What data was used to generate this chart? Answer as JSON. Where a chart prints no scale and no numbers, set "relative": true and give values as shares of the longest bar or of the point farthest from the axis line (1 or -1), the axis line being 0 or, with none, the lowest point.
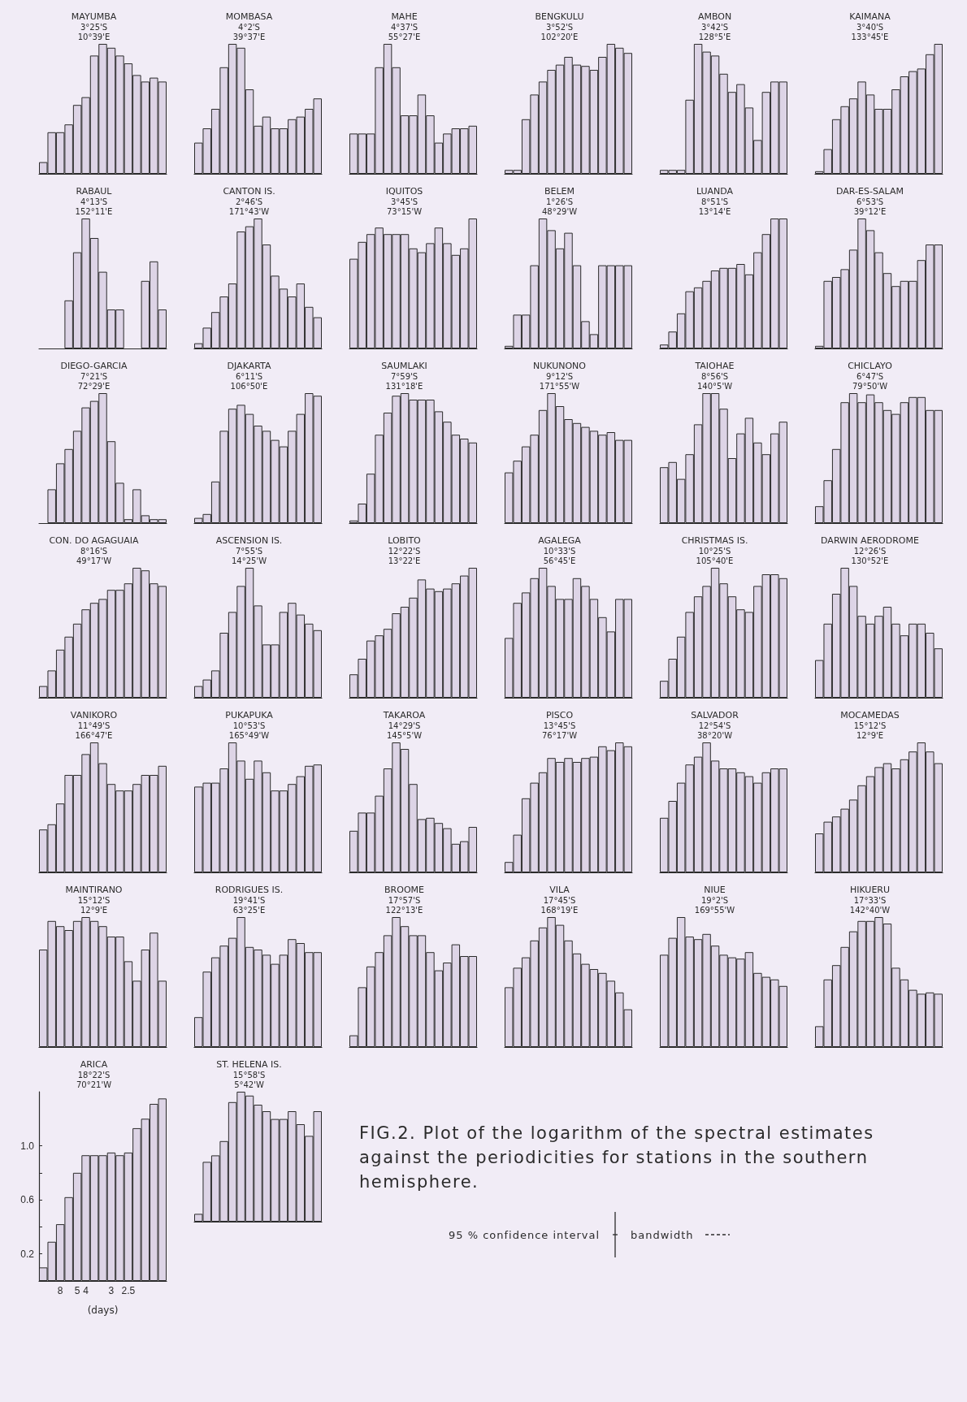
{
  "chart_data": [
    {
      "type": "bar",
      "relative": true,
      "title": "MAYUMBA",
      "subtitle": "3°25'S\n10°39'E",
      "categories": [
        null,
        null,
        null,
        null,
        null,
        null,
        null,
        null,
        null,
        null,
        null,
        null,
        null,
        null,
        null
      ],
      "values": [
        0.09,
        0.32,
        0.32,
        0.38,
        0.53,
        0.59,
        0.91,
        1,
        0.97,
        0.91,
        0.85,
        0.76,
        0.71,
        0.74,
        0.71
      ],
      "color": "#ddd4e6"
    },
    {
      "type": "bar",
      "relative": true,
      "title": "MOMBASA",
      "subtitle": "4°2'S\n39°37'E",
      "categories": [
        null,
        null,
        null,
        null,
        null,
        null,
        null,
        null,
        null,
        null,
        null,
        null,
        null,
        null,
        null
      ],
      "values": [
        0.24,
        0.35,
        0.5,
        0.82,
        1,
        0.97,
        0.65,
        0.37,
        0.44,
        0.35,
        0.35,
        0.42,
        0.44,
        0.5,
        0.58
      ],
      "color": "#ddd4e6"
    },
    {
      "type": "bar",
      "relative": true,
      "title": "MAHE",
      "subtitle": "4°37'S\n55°27'E",
      "categories": [
        null,
        null,
        null,
        null,
        null,
        null,
        null,
        null,
        null,
        null,
        null,
        null,
        null,
        null,
        null
      ],
      "values": [
        0.31,
        0.31,
        0.31,
        0.82,
        1,
        0.82,
        0.45,
        0.45,
        0.61,
        0.45,
        0.24,
        0.31,
        0.35,
        0.35,
        0.37
      ],
      "color": "#ddd4e6"
    },
    {
      "type": "bar",
      "relative": true,
      "title": "BENGKULU",
      "subtitle": "3°52'S\n102°20'E",
      "categories": [
        null,
        null,
        null,
        null,
        null,
        null,
        null,
        null,
        null,
        null,
        null,
        null,
        null,
        null,
        null
      ],
      "values": [
        0.03,
        0.03,
        0.42,
        0.61,
        0.71,
        0.8,
        0.84,
        0.9,
        0.84,
        0.83,
        0.8,
        0.9,
        1,
        0.97,
        0.93
      ],
      "color": "#ddd4e6"
    },
    {
      "type": "bar",
      "relative": true,
      "title": "AMBON",
      "subtitle": "3°42'S\n128°5'E",
      "categories": [
        null,
        null,
        null,
        null,
        null,
        null,
        null,
        null,
        null,
        null,
        null,
        null,
        null,
        null,
        null
      ],
      "values": [
        0.03,
        0.03,
        0.03,
        0.57,
        1,
        0.94,
        0.91,
        0.77,
        0.63,
        0.69,
        0.51,
        0.26,
        0.63,
        0.71,
        0.71
      ],
      "color": "#ddd4e6"
    },
    {
      "type": "bar",
      "relative": true,
      "title": "KAIMANA",
      "subtitle": "3°40'S\n133°45'E",
      "categories": [
        null,
        null,
        null,
        null,
        null,
        null,
        null,
        null,
        null,
        null,
        null,
        null,
        null,
        null,
        null
      ],
      "values": [
        0.02,
        0.19,
        0.42,
        0.52,
        0.58,
        0.71,
        0.61,
        0.5,
        0.5,
        0.65,
        0.75,
        0.79,
        0.81,
        0.92,
        1
      ],
      "color": "#ddd4e6"
    },
    {
      "type": "bar",
      "relative": true,
      "title": "RABAUL",
      "subtitle": "4°13'S\n152°11'E",
      "categories": [
        null,
        null,
        null,
        null,
        null,
        null,
        null,
        null,
        null,
        null,
        null,
        null,
        null,
        null,
        null
      ],
      "values": [
        0,
        0,
        0,
        0.37,
        0.74,
        1,
        0.85,
        0.59,
        0.3,
        0.3,
        0,
        0,
        0.52,
        0.67,
        0.3
      ],
      "color": "#ddd4e6"
    },
    {
      "type": "bar",
      "relative": true,
      "title": "CANTON IS.",
      "subtitle": "2°46'S\n171°43'W",
      "categories": [
        null,
        null,
        null,
        null,
        null,
        null,
        null,
        null,
        null,
        null,
        null,
        null,
        null,
        null,
        null
      ],
      "values": [
        0.04,
        0.16,
        0.28,
        0.4,
        0.5,
        0.9,
        0.94,
        1,
        0.8,
        0.56,
        0.46,
        0.4,
        0.5,
        0.32,
        0.24
      ],
      "color": "#ddd4e6"
    },
    {
      "type": "bar",
      "relative": true,
      "title": "IQUITOS",
      "subtitle": "3°45'S\n73°15'W",
      "categories": [
        null,
        null,
        null,
        null,
        null,
        null,
        null,
        null,
        null,
        null,
        null,
        null,
        null,
        null,
        null
      ],
      "values": [
        0.69,
        0.82,
        0.88,
        0.93,
        0.88,
        0.88,
        0.88,
        0.77,
        0.74,
        0.81,
        0.93,
        0.81,
        0.72,
        0.77,
        1
      ],
      "color": "#ddd4e6"
    },
    {
      "type": "bar",
      "relative": true,
      "title": "BELEM",
      "subtitle": "1°26'S\n48°29'W",
      "categories": [
        null,
        null,
        null,
        null,
        null,
        null,
        null,
        null,
        null,
        null,
        null,
        null,
        null,
        null,
        null
      ],
      "values": [
        0.02,
        0.26,
        0.26,
        0.64,
        1,
        0.91,
        0.77,
        0.89,
        0.64,
        0.21,
        0.11,
        0.64,
        0.64,
        0.64,
        0.64
      ],
      "color": "#ddd4e6"
    },
    {
      "type": "bar",
      "relative": true,
      "title": "LUANDA",
      "subtitle": "8°51'S\n13°14'E",
      "categories": [
        null,
        null,
        null,
        null,
        null,
        null,
        null,
        null,
        null,
        null,
        null,
        null,
        null,
        null,
        null
      ],
      "values": [
        0.03,
        0.13,
        0.27,
        0.44,
        0.47,
        0.52,
        0.6,
        0.62,
        0.62,
        0.65,
        0.57,
        0.74,
        0.88,
        1,
        1
      ],
      "color": "#ddd4e6"
    },
    {
      "type": "bar",
      "relative": true,
      "title": "DAR-ES-SALAM",
      "subtitle": "6°53'S\n39°12'E",
      "categories": [
        null,
        null,
        null,
        null,
        null,
        null,
        null,
        null,
        null,
        null,
        null,
        null,
        null,
        null,
        null
      ],
      "values": [
        0.02,
        0.52,
        0.55,
        0.61,
        0.76,
        1,
        0.91,
        0.74,
        0.58,
        0.48,
        0.52,
        0.52,
        0.68,
        0.8,
        0.8
      ],
      "color": "#ddd4e6"
    },
    {
      "type": "bar",
      "relative": true,
      "title": "DIEGO-GARCIA",
      "subtitle": "7°21'S\n72°29'E",
      "categories": [
        null,
        null,
        null,
        null,
        null,
        null,
        null,
        null,
        null,
        null,
        null,
        null,
        null,
        null,
        null
      ],
      "values": [
        0,
        0.26,
        0.46,
        0.57,
        0.71,
        0.89,
        0.94,
        1,
        0.63,
        0.31,
        0.03,
        0.26,
        0.06,
        0.03,
        0.03
      ],
      "color": "#ddd4e6"
    },
    {
      "type": "bar",
      "relative": true,
      "title": "DJAKARTA",
      "subtitle": "6°11'S\n106°50'E",
      "categories": [
        null,
        null,
        null,
        null,
        null,
        null,
        null,
        null,
        null,
        null,
        null,
        null,
        null,
        null,
        null
      ],
      "values": [
        0.04,
        0.07,
        0.32,
        0.71,
        0.88,
        0.91,
        0.84,
        0.75,
        0.71,
        0.64,
        0.59,
        0.71,
        0.84,
        1,
        0.98
      ],
      "color": "#ddd4e6"
    },
    {
      "type": "bar",
      "relative": true,
      "title": "SAUMLAKI",
      "subtitle": "7°59'S\n131°18'E",
      "categories": [
        null,
        null,
        null,
        null,
        null,
        null,
        null,
        null,
        null,
        null,
        null,
        null,
        null,
        null,
        null
      ],
      "values": [
        0.02,
        0.15,
        0.38,
        0.68,
        0.85,
        0.98,
        1,
        0.95,
        0.95,
        0.95,
        0.86,
        0.78,
        0.68,
        0.65,
        0.62
      ],
      "color": "#ddd4e6"
    },
    {
      "type": "bar",
      "relative": true,
      "title": "NUKUNONO",
      "subtitle": "9°12'S\n171°55'W",
      "categories": [
        null,
        null,
        null,
        null,
        null,
        null,
        null,
        null,
        null,
        null,
        null,
        null,
        null,
        null,
        null
      ],
      "values": [
        0.39,
        0.48,
        0.59,
        0.68,
        0.87,
        1,
        0.9,
        0.8,
        0.77,
        0.74,
        0.71,
        0.68,
        0.7,
        0.64,
        0.64
      ],
      "color": "#ddd4e6"
    },
    {
      "type": "bar",
      "relative": true,
      "title": "TAIOHAE",
      "subtitle": "8°56'S\n140°5'W",
      "categories": [
        null,
        null,
        null,
        null,
        null,
        null,
        null,
        null,
        null,
        null,
        null,
        null,
        null,
        null,
        null
      ],
      "values": [
        0.43,
        0.47,
        0.34,
        0.53,
        0.76,
        1,
        1,
        0.88,
        0.5,
        0.69,
        0.81,
        0.62,
        0.53,
        0.69,
        0.78
      ],
      "color": "#ddd4e6"
    },
    {
      "type": "bar",
      "relative": true,
      "title": "CHICLAYO",
      "subtitle": "6°47'S\n79°50'W",
      "categories": [
        null,
        null,
        null,
        null,
        null,
        null,
        null,
        null,
        null,
        null,
        null,
        null,
        null,
        null,
        null
      ],
      "values": [
        0.13,
        0.33,
        0.57,
        0.93,
        1,
        0.93,
        0.99,
        0.93,
        0.87,
        0.84,
        0.93,
        0.97,
        0.97,
        0.87,
        0.87
      ],
      "color": "#ddd4e6"
    },
    {
      "type": "bar",
      "relative": true,
      "title": "CON. DO AGAGUAIA",
      "subtitle": "8°16'S\n49°17'W",
      "categories": [
        null,
        null,
        null,
        null,
        null,
        null,
        null,
        null,
        null,
        null,
        null,
        null,
        null,
        null,
        null
      ],
      "values": [
        0.09,
        0.21,
        0.37,
        0.47,
        0.57,
        0.68,
        0.73,
        0.76,
        0.83,
        0.83,
        0.88,
        1,
        0.98,
        0.88,
        0.86
      ],
      "color": "#ddd4e6"
    },
    {
      "type": "bar",
      "relative": true,
      "title": "ASCENSION IS.",
      "subtitle": "7°55'S\n14°25'W",
      "categories": [
        null,
        null,
        null,
        null,
        null,
        null,
        null,
        null,
        null,
        null,
        null,
        null,
        null,
        null,
        null
      ],
      "values": [
        0.09,
        0.14,
        0.21,
        0.5,
        0.66,
        0.86,
        1,
        0.71,
        0.41,
        0.41,
        0.66,
        0.73,
        0.64,
        0.57,
        0.52
      ],
      "color": "#ddd4e6"
    },
    {
      "type": "bar",
      "relative": true,
      "title": "LOBITO",
      "subtitle": "12°22'S\n13°22'E",
      "categories": [
        null,
        null,
        null,
        null,
        null,
        null,
        null,
        null,
        null,
        null,
        null,
        null,
        null,
        null,
        null
      ],
      "values": [
        0.18,
        0.3,
        0.44,
        0.48,
        0.53,
        0.65,
        0.7,
        0.77,
        0.91,
        0.84,
        0.82,
        0.84,
        0.88,
        0.94,
        1
      ],
      "color": "#ddd4e6"
    },
    {
      "type": "bar",
      "relative": true,
      "title": "AGALEGA",
      "subtitle": "10°33'S\n56°45'E",
      "categories": [
        null,
        null,
        null,
        null,
        null,
        null,
        null,
        null,
        null,
        null,
        null,
        null,
        null,
        null,
        null
      ],
      "values": [
        0.46,
        0.73,
        0.81,
        0.92,
        1,
        0.86,
        0.76,
        0.76,
        0.92,
        0.86,
        0.76,
        0.62,
        0.51,
        0.76,
        0.76
      ],
      "color": "#ddd4e6"
    },
    {
      "type": "bar",
      "relative": true,
      "title": "CHRISTMAS IS.",
      "subtitle": "10°25'S\n105°40'E",
      "categories": [
        null,
        null,
        null,
        null,
        null,
        null,
        null,
        null,
        null,
        null,
        null,
        null,
        null,
        null,
        null
      ],
      "values": [
        0.13,
        0.3,
        0.47,
        0.66,
        0.78,
        0.86,
        1,
        0.88,
        0.78,
        0.68,
        0.66,
        0.86,
        0.95,
        0.95,
        0.92
      ],
      "color": "#ddd4e6"
    },
    {
      "type": "bar",
      "relative": true,
      "title": "DARWIN AERODROME",
      "subtitle": "12°26'S\n130°52'E",
      "categories": [
        null,
        null,
        null,
        null,
        null,
        null,
        null,
        null,
        null,
        null,
        null,
        null,
        null,
        null,
        null
      ],
      "values": [
        0.29,
        0.57,
        0.8,
        1,
        0.86,
        0.63,
        0.57,
        0.63,
        0.7,
        0.57,
        0.48,
        0.57,
        0.57,
        0.5,
        0.38
      ],
      "color": "#ddd4e6"
    },
    {
      "type": "bar",
      "relative": true,
      "title": "VANIKORO",
      "subtitle": "11°49'S\n166°47'E",
      "categories": [
        null,
        null,
        null,
        null,
        null,
        null,
        null,
        null,
        null,
        null,
        null,
        null,
        null,
        null,
        null
      ],
      "values": [
        0.33,
        0.37,
        0.53,
        0.75,
        0.75,
        0.91,
        1,
        0.84,
        0.68,
        0.63,
        0.63,
        0.68,
        0.75,
        0.75,
        0.82
      ],
      "color": "#ddd4e6"
    },
    {
      "type": "bar",
      "relative": true,
      "title": "PUKAPUKA",
      "subtitle": "10°53'S\n165°49'W",
      "categories": [
        null,
        null,
        null,
        null,
        null,
        null,
        null,
        null,
        null,
        null,
        null,
        null,
        null,
        null,
        null
      ],
      "values": [
        0.66,
        0.69,
        0.69,
        0.8,
        1,
        0.86,
        0.72,
        0.86,
        0.77,
        0.63,
        0.63,
        0.68,
        0.74,
        0.82,
        0.83
      ],
      "color": "#ddd4e6"
    },
    {
      "type": "bar",
      "relative": true,
      "title": "TAKAROA",
      "subtitle": "14°29'S\n145°5'W",
      "categories": [
        null,
        null,
        null,
        null,
        null,
        null,
        null,
        null,
        null,
        null,
        null,
        null,
        null,
        null,
        null
      ],
      "values": [
        0.32,
        0.46,
        0.46,
        0.59,
        0.8,
        1,
        0.95,
        0.68,
        0.41,
        0.42,
        0.38,
        0.34,
        0.22,
        0.24,
        0.35
      ],
      "color": "#ddd4e6"
    },
    {
      "type": "bar",
      "relative": true,
      "title": "PISCO",
      "subtitle": "13°45'S\n76°17'W",
      "categories": [
        null,
        null,
        null,
        null,
        null,
        null,
        null,
        null,
        null,
        null,
        null,
        null,
        null,
        null,
        null
      ],
      "values": [
        0.08,
        0.29,
        0.57,
        0.69,
        0.77,
        0.88,
        0.85,
        0.88,
        0.85,
        0.88,
        0.89,
        0.97,
        0.94,
        1,
        0.97
      ],
      "color": "#ddd4e6"
    },
    {
      "type": "bar",
      "relative": true,
      "title": "SALVADOR",
      "subtitle": "12°54'S\n38°20'W",
      "categories": [
        null,
        null,
        null,
        null,
        null,
        null,
        null,
        null,
        null,
        null,
        null,
        null,
        null,
        null,
        null
      ],
      "values": [
        0.42,
        0.55,
        0.69,
        0.83,
        0.89,
        1,
        0.86,
        0.8,
        0.8,
        0.77,
        0.74,
        0.69,
        0.77,
        0.8,
        0.8
      ],
      "color": "#ddd4e6"
    },
    {
      "type": "bar",
      "relative": true,
      "title": "MOCAMEDAS",
      "subtitle": "15°12'S\n12°9'E",
      "categories": [
        null,
        null,
        null,
        null,
        null,
        null,
        null,
        null,
        null,
        null,
        null,
        null,
        null,
        null,
        null
      ],
      "values": [
        0.3,
        0.39,
        0.43,
        0.49,
        0.56,
        0.67,
        0.74,
        0.81,
        0.84,
        0.8,
        0.87,
        0.93,
        1,
        0.93,
        0.84
      ],
      "color": "#ddd4e6"
    },
    {
      "type": "bar",
      "relative": true,
      "title": "MAINTIRANO",
      "subtitle": "15°12'S\n12°9'E",
      "categories": [
        null,
        null,
        null,
        null,
        null,
        null,
        null,
        null,
        null,
        null,
        null,
        null,
        null,
        null,
        null
      ],
      "values": [
        0.75,
        0.97,
        0.93,
        0.9,
        0.97,
        1,
        0.97,
        0.93,
        0.85,
        0.85,
        0.66,
        0.51,
        0.75,
        0.88,
        0.51
      ],
      "color": "#ddd4e6"
    },
    {
      "type": "bar",
      "relative": true,
      "title": "RODRIGUES IS.",
      "subtitle": "19°41'S\n63°25'E",
      "categories": [
        null,
        null,
        null,
        null,
        null,
        null,
        null,
        null,
        null,
        null,
        null,
        null,
        null,
        null,
        null
      ],
      "values": [
        0.23,
        0.58,
        0.69,
        0.78,
        0.84,
        1,
        0.77,
        0.75,
        0.71,
        0.64,
        0.71,
        0.83,
        0.8,
        0.73,
        0.73
      ],
      "color": "#ddd4e6"
    },
    {
      "type": "bar",
      "relative": true,
      "title": "BROOME",
      "subtitle": "17°57'S\n122°13'E",
      "categories": [
        null,
        null,
        null,
        null,
        null,
        null,
        null,
        null,
        null,
        null,
        null,
        null,
        null,
        null,
        null
      ],
      "values": [
        0.09,
        0.46,
        0.62,
        0.73,
        0.86,
        1,
        0.93,
        0.86,
        0.86,
        0.73,
        0.59,
        0.65,
        0.79,
        0.7,
        0.7
      ],
      "color": "#ddd4e6"
    },
    {
      "type": "bar",
      "relative": true,
      "title": "VILA",
      "subtitle": "17°45'S\n168°19'E",
      "categories": [
        null,
        null,
        null,
        null,
        null,
        null,
        null,
        null,
        null,
        null,
        null,
        null,
        null,
        null,
        null
      ],
      "values": [
        0.46,
        0.61,
        0.69,
        0.82,
        0.92,
        1,
        0.94,
        0.82,
        0.72,
        0.64,
        0.6,
        0.57,
        0.51,
        0.42,
        0.29
      ],
      "color": "#ddd4e6"
    },
    {
      "type": "bar",
      "relative": true,
      "title": "NIUE",
      "subtitle": "19°2'S\n169°55'W",
      "categories": [
        null,
        null,
        null,
        null,
        null,
        null,
        null,
        null,
        null,
        null,
        null,
        null,
        null,
        null,
        null
      ],
      "values": [
        0.71,
        0.84,
        1,
        0.85,
        0.83,
        0.87,
        0.78,
        0.71,
        0.69,
        0.68,
        0.73,
        0.57,
        0.54,
        0.52,
        0.47
      ],
      "color": "#ddd4e6"
    },
    {
      "type": "bar",
      "relative": true,
      "title": "HIKUERU",
      "subtitle": "17°33'S\n142°40'W",
      "categories": [
        null,
        null,
        null,
        null,
        null,
        null,
        null,
        null,
        null,
        null,
        null,
        null,
        null,
        null,
        null
      ],
      "values": [
        0.16,
        0.52,
        0.63,
        0.77,
        0.89,
        0.97,
        0.97,
        1,
        0.95,
        0.61,
        0.52,
        0.44,
        0.41,
        0.42,
        0.41
      ],
      "color": "#ddd4e6"
    },
    {
      "type": "bar",
      "title": "ARICA",
      "subtitle": "18°22'S\n70°21'W",
      "xlabel": "(days)",
      "categories": [
        null,
        null,
        "8",
        null,
        "5",
        "4",
        null,
        null,
        "3",
        null,
        "2.5",
        null,
        null,
        null,
        null
      ],
      "values": [
        0.1,
        0.29,
        0.42,
        0.62,
        0.8,
        0.93,
        0.93,
        0.93,
        0.95,
        0.93,
        0.95,
        1.13,
        1.2,
        1.31,
        1.35
      ],
      "color": "#ddd4e6",
      "ylim": [
        0,
        1.4
      ],
      "yticks": [
        0.2,
        {
          "value": 0.4,
          "label": null
        },
        0.6,
        {
          "value": 0.8,
          "label": null
        },
        {
          "value": 1,
          "label": "1.0"
        }
      ]
    },
    {
      "type": "bar",
      "relative": true,
      "title": "ST. HELENA IS.",
      "subtitle": "15°58'S\n5°42'W",
      "categories": [
        null,
        null,
        null,
        null,
        null,
        null,
        null,
        null,
        null,
        null,
        null,
        null,
        null,
        null,
        null
      ],
      "values": [
        0.06,
        0.46,
        0.51,
        0.62,
        0.92,
        1,
        0.97,
        0.9,
        0.85,
        0.79,
        0.79,
        0.85,
        0.75,
        0.66,
        0.85
      ],
      "color": "#ddd4e6"
    },
    {
      "type": "other",
      "annotations": [
        "FIG.2. Plot of the logarithm of the spectral estimates against the periodicities for stations in the southern hemisphere.",
        "95 % confidence interval",
        "bandwidth"
      ]
    }
  ]
}
